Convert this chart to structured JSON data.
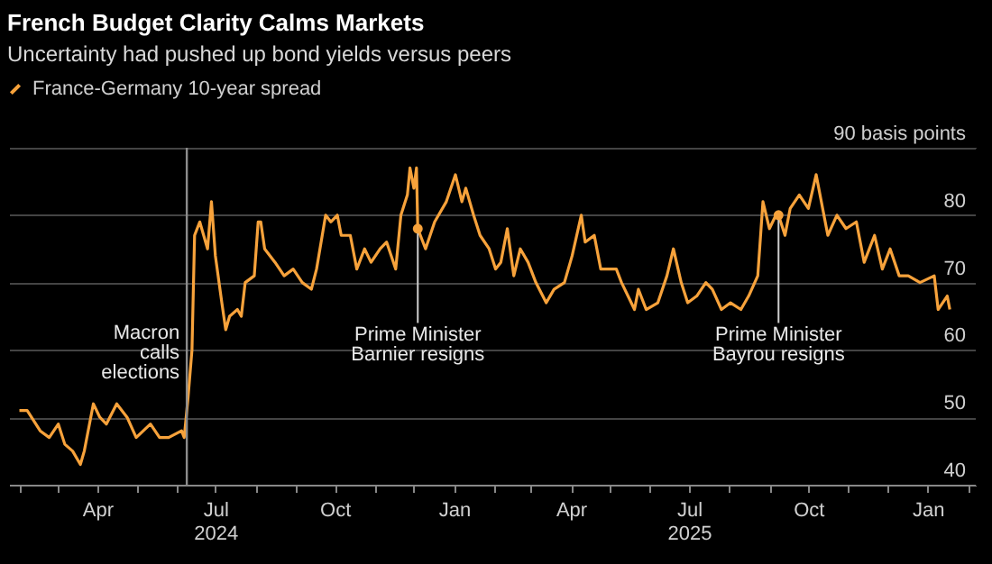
{
  "chart_data": {
    "type": "line",
    "title": "French Budget Clarity Calms Markets",
    "subtitle": "Uncertainty had pushed up bond yields versus peers",
    "x": [
      "2024-02-01",
      "2024-02-07",
      "2024-02-17",
      "2024-02-24",
      "2024-03-02",
      "2024-03-07",
      "2024-03-13",
      "2024-03-19",
      "2024-03-22",
      "2024-03-29",
      "2024-04-03",
      "2024-04-08",
      "2024-04-16",
      "2024-04-24",
      "2024-05-01",
      "2024-05-12",
      "2024-05-19",
      "2024-05-26",
      "2024-06-05",
      "2024-06-07",
      "2024-06-10",
      "2024-06-13",
      "2024-06-15",
      "2024-06-19",
      "2024-06-22",
      "2024-06-25",
      "2024-06-28",
      "2024-07-01",
      "2024-07-06",
      "2024-07-09",
      "2024-07-12",
      "2024-07-18",
      "2024-07-21",
      "2024-07-24",
      "2024-07-31",
      "2024-08-03",
      "2024-08-05",
      "2024-08-08",
      "2024-08-16",
      "2024-08-23",
      "2024-08-30",
      "2024-09-06",
      "2024-09-13",
      "2024-09-17",
      "2024-09-24",
      "2024-09-28",
      "2024-10-03",
      "2024-10-06",
      "2024-10-13",
      "2024-10-18",
      "2024-10-24",
      "2024-10-29",
      "2024-11-05",
      "2024-11-10",
      "2024-11-17",
      "2024-11-21",
      "2024-11-26",
      "2024-11-28",
      "2024-12-01",
      "2024-12-03",
      "2024-12-04",
      "2024-12-10",
      "2024-12-17",
      "2024-12-26",
      "2025-01-02",
      "2025-01-07",
      "2025-01-10",
      "2025-01-16",
      "2025-01-21",
      "2025-01-28",
      "2025-02-02",
      "2025-02-06",
      "2025-02-11",
      "2025-02-16",
      "2025-02-21",
      "2025-02-27",
      "2025-03-05",
      "2025-03-13",
      "2025-03-19",
      "2025-03-27",
      "2025-04-02",
      "2025-04-09",
      "2025-04-12",
      "2025-04-19",
      "2025-04-24",
      "2025-05-06",
      "2025-05-10",
      "2025-05-15",
      "2025-05-20",
      "2025-05-23",
      "2025-05-29",
      "2025-06-07",
      "2025-06-14",
      "2025-06-19",
      "2025-06-25",
      "2025-06-30",
      "2025-07-07",
      "2025-07-14",
      "2025-07-19",
      "2025-07-26",
      "2025-08-02",
      "2025-08-10",
      "2025-08-16",
      "2025-08-23",
      "2025-08-27",
      "2025-09-01",
      "2025-09-06",
      "2025-09-08",
      "2025-09-13",
      "2025-09-17",
      "2025-09-24",
      "2025-10-01",
      "2025-10-07",
      "2025-10-10",
      "2025-10-16",
      "2025-10-23",
      "2025-10-30",
      "2025-11-07",
      "2025-11-13",
      "2025-11-21",
      "2025-11-27",
      "2025-12-03",
      "2025-12-10",
      "2025-12-17",
      "2025-12-26",
      "2026-01-06",
      "2026-01-09",
      "2026-01-16",
      "2026-01-18"
    ],
    "series": [
      {
        "name": "France-Germany 10-year spread",
        "color": "#f7a23b",
        "values": [
          51,
          51,
          48,
          47,
          49,
          46,
          45,
          43,
          45,
          52,
          50,
          49,
          52,
          50,
          47,
          49,
          47,
          47,
          48,
          47,
          53,
          60,
          77,
          79,
          77,
          75,
          82,
          74,
          67,
          63,
          65,
          66,
          65,
          70,
          71,
          79,
          79,
          75,
          73,
          71,
          72,
          70,
          69,
          72,
          80,
          79,
          80,
          77,
          77,
          72,
          75,
          73,
          75,
          76,
          72,
          80,
          83,
          87,
          84,
          87,
          78,
          75,
          79,
          82,
          86,
          82,
          84,
          80,
          77,
          75,
          72,
          73,
          78,
          71,
          75,
          73,
          70,
          67,
          69,
          70,
          74,
          80,
          76,
          77,
          72,
          72,
          70,
          68,
          66,
          69,
          66,
          67,
          71,
          75,
          70,
          67,
          68,
          70,
          69,
          66,
          67,
          66,
          68,
          71,
          82,
          78,
          80,
          80,
          77,
          81,
          83,
          81,
          86,
          83,
          77,
          80,
          78,
          79,
          73,
          77,
          72,
          75,
          71,
          71,
          70,
          71,
          66,
          68,
          66
        ]
      }
    ],
    "xlim": [
      "2024-01-24",
      "2026-02-07"
    ],
    "xticks": [
      {
        "value": "2024-02-01",
        "label": null
      },
      {
        "value": "2024-03-01",
        "label": null
      },
      {
        "value": "2024-04-01",
        "label": "Apr"
      },
      {
        "value": "2024-05-01",
        "label": null
      },
      {
        "value": "2024-06-01",
        "label": null
      },
      {
        "value": "2024-07-01",
        "label": "Jul\n2024"
      },
      {
        "value": "2024-08-01",
        "label": null
      },
      {
        "value": "2024-09-01",
        "label": null
      },
      {
        "value": "2024-10-01",
        "label": "Oct"
      },
      {
        "value": "2024-11-01",
        "label": null
      },
      {
        "value": "2024-12-01",
        "label": null
      },
      {
        "value": "2025-01-01",
        "label": "Jan"
      },
      {
        "value": "2025-02-01",
        "label": null
      },
      {
        "value": "2025-03-01",
        "label": null
      },
      {
        "value": "2025-04-01",
        "label": "Apr"
      },
      {
        "value": "2025-05-01",
        "label": null
      },
      {
        "value": "2025-06-01",
        "label": null
      },
      {
        "value": "2025-07-01",
        "label": "Jul\n2025"
      },
      {
        "value": "2025-08-01",
        "label": null
      },
      {
        "value": "2025-09-01",
        "label": null
      },
      {
        "value": "2025-10-01",
        "label": "Oct"
      },
      {
        "value": "2025-11-01",
        "label": null
      },
      {
        "value": "2025-12-01",
        "label": null
      },
      {
        "value": "2026-01-01",
        "label": "Jan"
      },
      {
        "value": "2026-02-01",
        "label": null
      }
    ],
    "ylim": [
      40,
      90
    ],
    "yticks": [
      40,
      50,
      60,
      70,
      80,
      {
        "value": 90,
        "label": "90 basis points"
      }
    ],
    "grid": "y",
    "legend": "top left",
    "ref_lines": [
      {
        "axis": "x",
        "value": "2024-06-09",
        "label": "Macron\ncalls\nelections",
        "color": "#8c8c8c"
      }
    ],
    "annotations": [
      {
        "text": "Prime Minister\nBarnier resigns",
        "x": "2024-12-04",
        "y": 78
      },
      {
        "text": "Prime Minister\nBayrou resigns",
        "x": "2025-09-08",
        "y": 80
      }
    ]
  }
}
